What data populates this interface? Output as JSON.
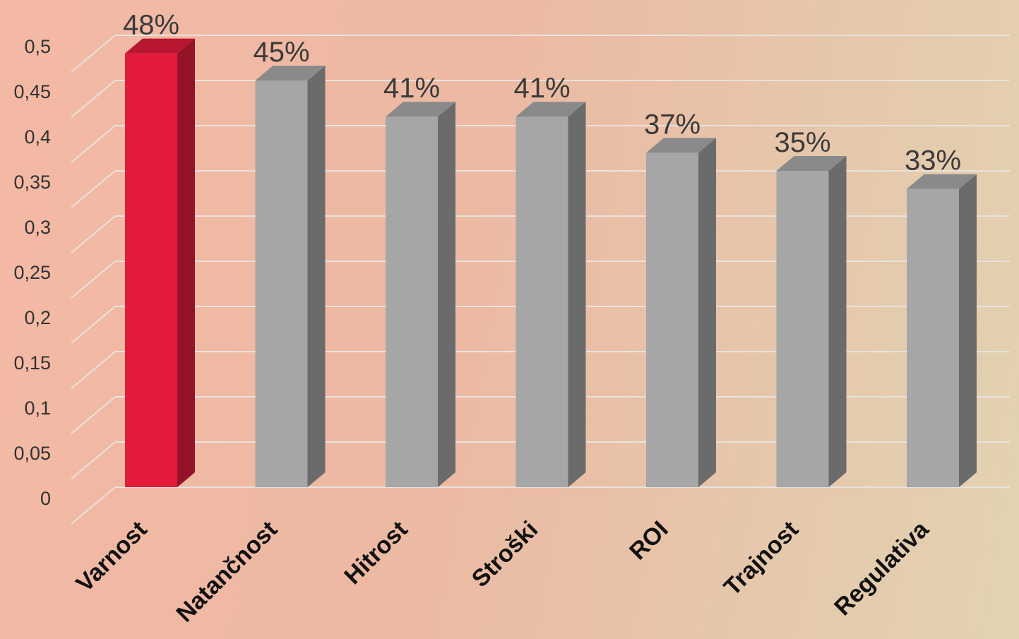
{
  "chart_data": {
    "type": "bar",
    "categories": [
      "Varnost",
      "Natančnost",
      "Hitrost",
      "Stroški",
      "ROI",
      "Trajnost",
      "Regulativa"
    ],
    "values": [
      0.48,
      0.45,
      0.41,
      0.41,
      0.37,
      0.35,
      0.33
    ],
    "data_labels": [
      "48%",
      "45%",
      "41%",
      "41%",
      "37%",
      "35%",
      "33%"
    ],
    "yticks": [
      "0",
      "0,05",
      "0,1",
      "0,15",
      "0,2",
      "0,25",
      "0,3",
      "0,35",
      "0,4",
      "0,45",
      "0,5"
    ],
    "ylim": [
      0,
      0.5
    ],
    "grid": true,
    "style": "3d-column",
    "highlight_index": 0,
    "colors": {
      "highlight_front": "#e31b3a",
      "highlight_side": "#951329",
      "highlight_top": "#b71730",
      "bar_front": "#a6a6a6",
      "bar_side": "#6b6b6b",
      "bar_top": "#8a8a8a",
      "grid": "#e8e2dc"
    }
  }
}
